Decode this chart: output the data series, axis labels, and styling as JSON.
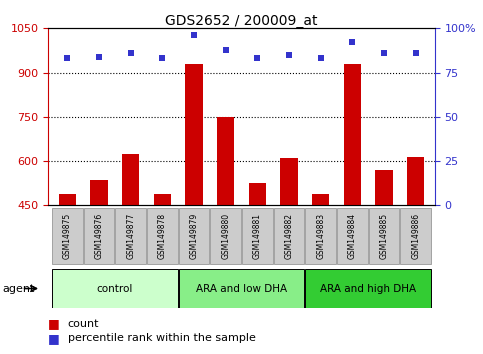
{
  "title": "GDS2652 / 200009_at",
  "samples": [
    "GSM149875",
    "GSM149876",
    "GSM149877",
    "GSM149878",
    "GSM149879",
    "GSM149880",
    "GSM149881",
    "GSM149882",
    "GSM149883",
    "GSM149884",
    "GSM149885",
    "GSM149886"
  ],
  "counts": [
    490,
    535,
    625,
    490,
    930,
    750,
    525,
    610,
    490,
    930,
    570,
    615
  ],
  "percentiles": [
    83,
    84,
    86,
    83,
    96,
    88,
    83,
    85,
    83,
    92,
    86,
    86
  ],
  "ylim_left": [
    450,
    1050
  ],
  "ylim_right": [
    0,
    100
  ],
  "yticks_left": [
    450,
    600,
    750,
    900,
    1050
  ],
  "yticks_right": [
    0,
    25,
    50,
    75,
    100
  ],
  "bar_color": "#cc0000",
  "dot_color": "#3333cc",
  "groups": [
    {
      "label": "control",
      "start": 0,
      "end": 4,
      "color": "#ccffcc"
    },
    {
      "label": "ARA and low DHA",
      "start": 4,
      "end": 8,
      "color": "#88ee88"
    },
    {
      "label": "ARA and high DHA",
      "start": 8,
      "end": 12,
      "color": "#33cc33"
    }
  ],
  "left_axis_color": "#cc0000",
  "right_axis_color": "#3333cc",
  "agent_label": "agent",
  "bg_plot": "white",
  "grid_color": "black",
  "sample_box_color": "#cccccc",
  "sample_box_edge": "#888888"
}
